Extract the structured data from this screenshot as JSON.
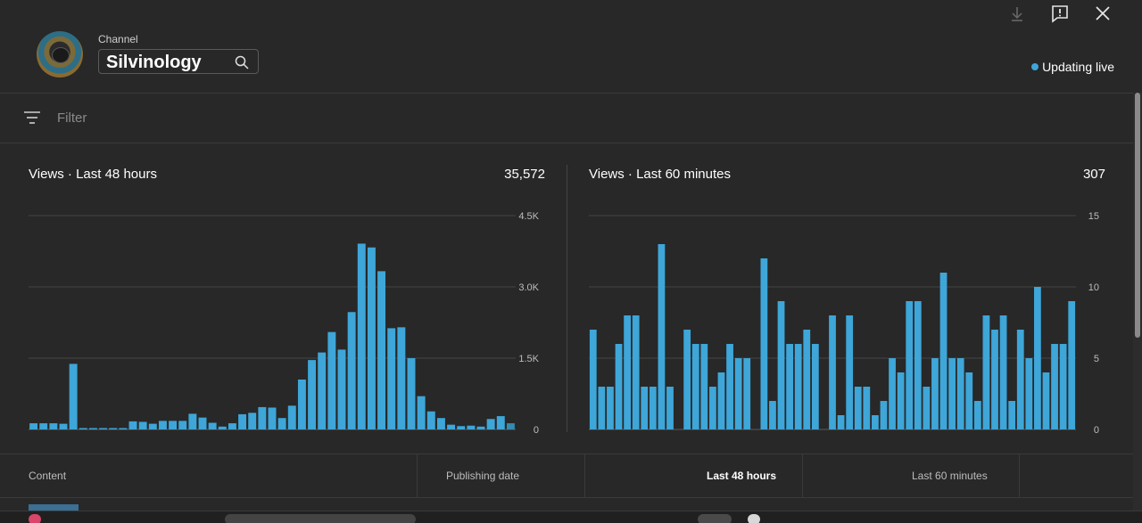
{
  "header": {
    "channel_label": "Channel",
    "channel_name": "Silvinology",
    "live_status": "Updating live",
    "icons": [
      "download-icon",
      "feedback-icon",
      "close-icon",
      "search-icon"
    ],
    "accent_color": "#3ea6d8"
  },
  "filter": {
    "placeholder": "Filter"
  },
  "charts": {
    "left": {
      "title": "Views · Last 48 hours",
      "total": "35,572"
    },
    "right": {
      "title": "Views · Last 60 minutes",
      "total": "307"
    }
  },
  "chart_data": [
    {
      "type": "bar",
      "title": "Views · Last 48 hours",
      "ylim": [
        0,
        4500
      ],
      "ytick_labels": [
        "4.5K",
        "3.0K",
        "1.5K",
        "0"
      ],
      "ytick_values": [
        4500,
        3000,
        1500,
        0
      ],
      "grid": true,
      "values": [
        130,
        130,
        130,
        120,
        1380,
        20,
        10,
        10,
        10,
        10,
        170,
        160,
        120,
        180,
        180,
        180,
        330,
        250,
        140,
        60,
        130,
        320,
        350,
        470,
        460,
        240,
        500,
        1050,
        1460,
        1620,
        2050,
        1680,
        2470,
        3910,
        3830,
        3330,
        2130,
        2150,
        1500,
        700,
        380,
        240,
        100,
        70,
        80,
        60,
        220,
        280,
        130
      ],
      "bar_color": "#3ea6d8"
    },
    {
      "type": "bar",
      "title": "Views · Last 60 minutes",
      "ylim": [
        0,
        15
      ],
      "ytick_labels": [
        "15",
        "10",
        "5",
        "0"
      ],
      "ytick_values": [
        15,
        10,
        5,
        0
      ],
      "grid": true,
      "values": [
        7,
        3,
        3,
        6,
        8,
        8,
        3,
        3,
        13,
        3,
        0,
        7,
        6,
        6,
        3,
        4,
        6,
        5,
        5,
        0,
        12,
        2,
        9,
        6,
        6,
        7,
        6,
        0,
        8,
        1,
        8,
        3,
        3,
        1,
        2,
        5,
        4,
        9,
        9,
        3,
        5,
        11,
        5,
        5,
        4,
        2,
        8,
        7,
        8,
        2,
        7,
        5,
        10,
        4,
        6,
        6,
        9
      ],
      "bar_color": "#3ea6d8"
    }
  ],
  "table": {
    "columns": [
      "Content",
      "Publishing date",
      "Last 48 hours",
      "Last 60 minutes"
    ]
  }
}
